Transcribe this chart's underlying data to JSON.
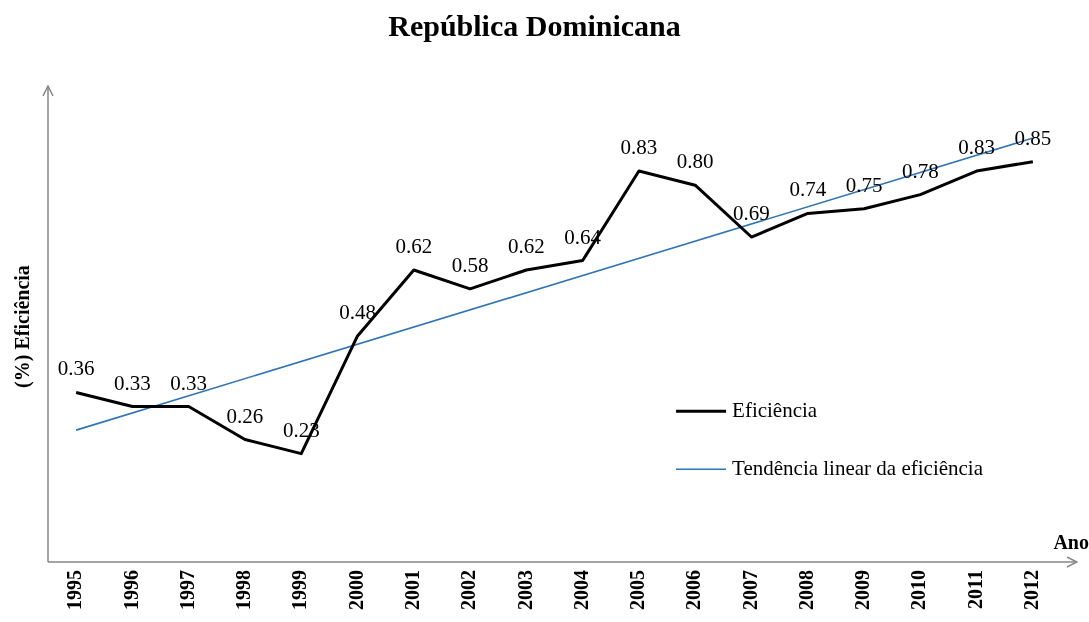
{
  "chart_data": {
    "type": "line",
    "title": "República Dominicana",
    "xlabel": "Ano",
    "ylabel": "(%) Eficiência",
    "categories": [
      "1995",
      "1996",
      "1997",
      "1998",
      "1999",
      "2000",
      "2001",
      "2002",
      "2003",
      "2004",
      "2005",
      "2006",
      "2007",
      "2008",
      "2009",
      "2010",
      "2011",
      "2012"
    ],
    "series": [
      {
        "name": "Eficiência",
        "color": "#000000",
        "values": [
          0.36,
          0.33,
          0.33,
          0.26,
          0.23,
          0.48,
          0.62,
          0.58,
          0.62,
          0.64,
          0.83,
          0.8,
          0.69,
          0.74,
          0.75,
          0.78,
          0.83,
          0.85
        ],
        "value_labels": [
          "0.36",
          "0.33",
          "0.33",
          "0.26",
          "0.23",
          "0.48",
          "0.62",
          "0.58",
          "0.62",
          "0.64",
          "0.83",
          "0.80",
          "0.69",
          "0.74",
          "0.75",
          "0.78",
          "0.83",
          "0.85"
        ]
      },
      {
        "name": "Tendência linear da eficiência",
        "color": "#2e75b6",
        "values": [
          0.28,
          null,
          null,
          null,
          null,
          null,
          null,
          null,
          null,
          null,
          null,
          null,
          null,
          null,
          null,
          null,
          null,
          0.9
        ]
      }
    ],
    "legend": "bottom right",
    "grid": false,
    "marker": "none",
    "line_style": "solid"
  }
}
